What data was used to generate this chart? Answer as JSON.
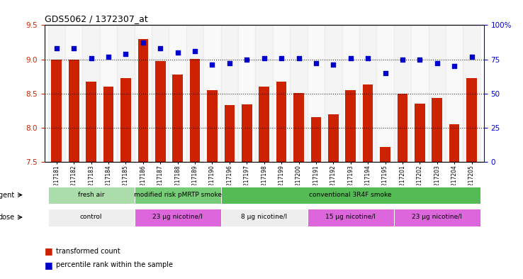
{
  "title": "GDS5062 / 1372307_at",
  "samples": [
    "GSM1217181",
    "GSM1217182",
    "GSM1217183",
    "GSM1217184",
    "GSM1217185",
    "GSM1217186",
    "GSM1217187",
    "GSM1217188",
    "GSM1217189",
    "GSM1217190",
    "GSM1217196",
    "GSM1217197",
    "GSM1217198",
    "GSM1217199",
    "GSM1217200",
    "GSM1217191",
    "GSM1217192",
    "GSM1217193",
    "GSM1217194",
    "GSM1217195",
    "GSM1217201",
    "GSM1217202",
    "GSM1217203",
    "GSM1217204",
    "GSM1217205"
  ],
  "bar_values": [
    9.0,
    9.0,
    8.67,
    8.6,
    8.72,
    9.3,
    8.97,
    8.78,
    9.01,
    8.55,
    8.33,
    8.34,
    8.6,
    8.67,
    8.51,
    8.15,
    8.2,
    8.55,
    8.63,
    7.72,
    8.5,
    8.35,
    8.43,
    8.05,
    8.72
  ],
  "percentile_values": [
    83,
    83,
    76,
    77,
    79,
    87,
    83,
    80,
    81,
    71,
    72,
    75,
    76,
    76,
    76,
    72,
    71,
    76,
    76,
    65,
    75,
    75,
    72,
    70,
    77
  ],
  "ylim_left": [
    7.5,
    9.5
  ],
  "ylim_right": [
    0,
    100
  ],
  "yticks_left": [
    7.5,
    8.0,
    8.5,
    9.0,
    9.5
  ],
  "yticks_right": [
    0,
    25,
    50,
    75,
    100
  ],
  "bar_color": "#cc2200",
  "dot_color": "#0000cc",
  "bar_width": 0.6,
  "agent_groups": [
    {
      "label": "fresh air",
      "start": 0,
      "end": 5,
      "color": "#aaddaa"
    },
    {
      "label": "modified risk pMRTP smoke",
      "start": 5,
      "end": 10,
      "color": "#77cc77"
    },
    {
      "label": "conventional 3R4F smoke",
      "start": 10,
      "end": 25,
      "color": "#55bb55"
    }
  ],
  "dose_groups": [
    {
      "label": "control",
      "start": 0,
      "end": 5,
      "color": "#eeeeee"
    },
    {
      "label": "23 μg nicotine/l",
      "start": 5,
      "end": 10,
      "color": "#dd66dd"
    },
    {
      "label": "8 μg nicotine/l",
      "start": 10,
      "end": 15,
      "color": "#eeeeee"
    },
    {
      "label": "15 μg nicotine/l",
      "start": 15,
      "end": 20,
      "color": "#dd66dd"
    },
    {
      "label": "23 μg nicotine/l",
      "start": 20,
      "end": 25,
      "color": "#dd66dd"
    }
  ],
  "legend_bar_label": "transformed count",
  "legend_dot_label": "percentile rank within the sample",
  "grid_lines": [
    9.0,
    8.5,
    8.0
  ],
  "bar_bottom": 7.5
}
